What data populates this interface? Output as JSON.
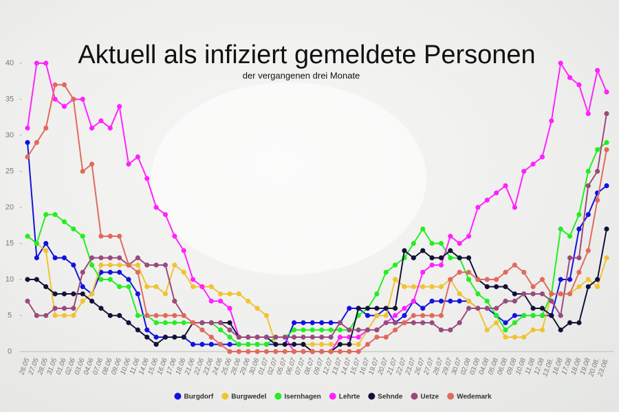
{
  "chart_data": {
    "type": "line",
    "title": "Aktuell als infiziert gemeldete Personen",
    "subtitle": "der vergangenen drei Monate",
    "categories": [
      "26.05",
      "27.05",
      "28.05",
      "31.05",
      "01.06",
      "02.06",
      "03.06",
      "04.06",
      "07.06",
      "08.06",
      "09.06",
      "10.06",
      "11.06",
      "14.06",
      "15.06",
      "16.06",
      "17.06",
      "18.06",
      "21.06",
      "22.06",
      "23.06",
      "24.06",
      "25.06",
      "28.06",
      "29.06",
      "30.06",
      "01.07",
      "02.07",
      "05.07",
      "06.07",
      "07.07",
      "08.07",
      "09.07",
      "12.07",
      "13.07",
      "14.07",
      "15.07",
      "16.07",
      "19.07",
      "20.07",
      "21.07",
      "22.07",
      "23.07",
      "26.07",
      "27.07",
      "28.07",
      "29.07",
      "30.07",
      "02.08",
      "03.08",
      "04.08",
      "05.08",
      "06.08",
      "09.08",
      "10.08",
      "11.08",
      "12.08",
      "13.08.",
      "16.08",
      "17.08",
      "18.08",
      "19.08",
      "20.08.",
      "23.08."
    ],
    "series": [
      {
        "name": "Burgdorf",
        "color": "#1212e0",
        "values": [
          29,
          13,
          15,
          13,
          13,
          12,
          9,
          8,
          11,
          11,
          11,
          10,
          8,
          3,
          2,
          2,
          2,
          2,
          1,
          1,
          1,
          1,
          1,
          1,
          1,
          1,
          1,
          1,
          1,
          4,
          4,
          4,
          4,
          4,
          4,
          6,
          6,
          5,
          5,
          6,
          4,
          5,
          7,
          6,
          7,
          7,
          7,
          7,
          7,
          6,
          6,
          5,
          4,
          5,
          5,
          5,
          5,
          5,
          10,
          10,
          17,
          19,
          22,
          23
        ]
      },
      {
        "name": "Burgwedel",
        "color": "#f2c232",
        "values": [
          16,
          15,
          14,
          5,
          5,
          5,
          7,
          8,
          12,
          12,
          12,
          12,
          12,
          9,
          9,
          8,
          12,
          11,
          9,
          9,
          9,
          8,
          8,
          8,
          7,
          6,
          5,
          1,
          1,
          1,
          1,
          1,
          1,
          1,
          1,
          1,
          1,
          3,
          5,
          5,
          10,
          9,
          9,
          9,
          9,
          9,
          10,
          8,
          7,
          6,
          3,
          4,
          2,
          2,
          2,
          3,
          3,
          8,
          8,
          8,
          9,
          10,
          9,
          13
        ]
      },
      {
        "name": "Isernhagen",
        "color": "#22ee22",
        "values": [
          16,
          15,
          19,
          19,
          18,
          17,
          16,
          12,
          10,
          10,
          9,
          9,
          5,
          5,
          4,
          4,
          4,
          4,
          4,
          4,
          4,
          3,
          2,
          1,
          1,
          1,
          1,
          2,
          2,
          3,
          3,
          3,
          3,
          3,
          3,
          3,
          5,
          6,
          8,
          11,
          12,
          13,
          15,
          17,
          15,
          15,
          13,
          13,
          10,
          8,
          7,
          5,
          3,
          4,
          5,
          5,
          5,
          8,
          17,
          16,
          19,
          25,
          28,
          29
        ]
      },
      {
        "name": "Lehrte",
        "color": "#ff22ff",
        "values": [
          31,
          40,
          40,
          35,
          34,
          35,
          35,
          31,
          32,
          31,
          34,
          26,
          27,
          24,
          20,
          19,
          16,
          14,
          10,
          9,
          7,
          7,
          6,
          2,
          2,
          2,
          2,
          2,
          2,
          0,
          0,
          0,
          0,
          0,
          2,
          2,
          2,
          3,
          3,
          4,
          5,
          6,
          7,
          11,
          12,
          12,
          16,
          15,
          16,
          20,
          21,
          22,
          23,
          20,
          25,
          26,
          27,
          32,
          40,
          38,
          37,
          33,
          39,
          36
        ]
      },
      {
        "name": "Sehnde",
        "color": "#121238",
        "values": [
          10,
          10,
          9,
          8,
          8,
          8,
          8,
          7,
          6,
          5,
          5,
          4,
          3,
          2,
          1,
          2,
          2,
          2,
          4,
          4,
          4,
          4,
          4,
          2,
          2,
          2,
          2,
          1,
          1,
          1,
          1,
          0,
          0,
          0,
          1,
          1,
          6,
          6,
          6,
          6,
          6,
          14,
          13,
          14,
          13,
          13,
          14,
          13,
          13,
          10,
          9,
          9,
          9,
          8,
          8,
          6,
          6,
          5,
          3,
          4,
          4,
          9,
          10,
          17
        ]
      },
      {
        "name": "Uetze",
        "color": "#9a4a7c",
        "values": [
          7,
          5,
          5,
          6,
          6,
          6,
          11,
          13,
          13,
          13,
          13,
          12,
          13,
          12,
          12,
          12,
          7,
          5,
          4,
          4,
          4,
          4,
          3,
          2,
          2,
          2,
          2,
          2,
          2,
          2,
          2,
          2,
          2,
          2,
          4,
          3,
          3,
          3,
          3,
          4,
          4,
          4,
          4,
          4,
          4,
          3,
          3,
          4,
          6,
          6,
          6,
          6,
          7,
          7,
          8,
          8,
          8,
          7,
          5,
          13,
          13,
          23,
          25,
          33
        ]
      },
      {
        "name": "Wedemark",
        "color": "#e06a5c",
        "values": [
          27,
          29,
          31,
          37,
          37,
          35,
          25,
          26,
          16,
          16,
          16,
          12,
          11,
          5,
          5,
          5,
          5,
          5,
          4,
          3,
          2,
          1,
          0,
          0,
          0,
          0,
          0,
          0,
          0,
          0,
          0,
          0,
          0,
          0,
          0,
          0,
          0,
          1,
          2,
          2,
          3,
          4,
          5,
          5,
          5,
          5,
          10,
          11,
          11,
          10,
          10,
          10,
          11,
          12,
          11,
          9,
          10,
          8,
          8,
          8,
          11,
          14,
          21,
          28
        ]
      }
    ],
    "ylim": [
      0,
      40
    ],
    "yticks": [
      0,
      5,
      10,
      15,
      20,
      25,
      30,
      35,
      40
    ],
    "legend": "bottom"
  }
}
